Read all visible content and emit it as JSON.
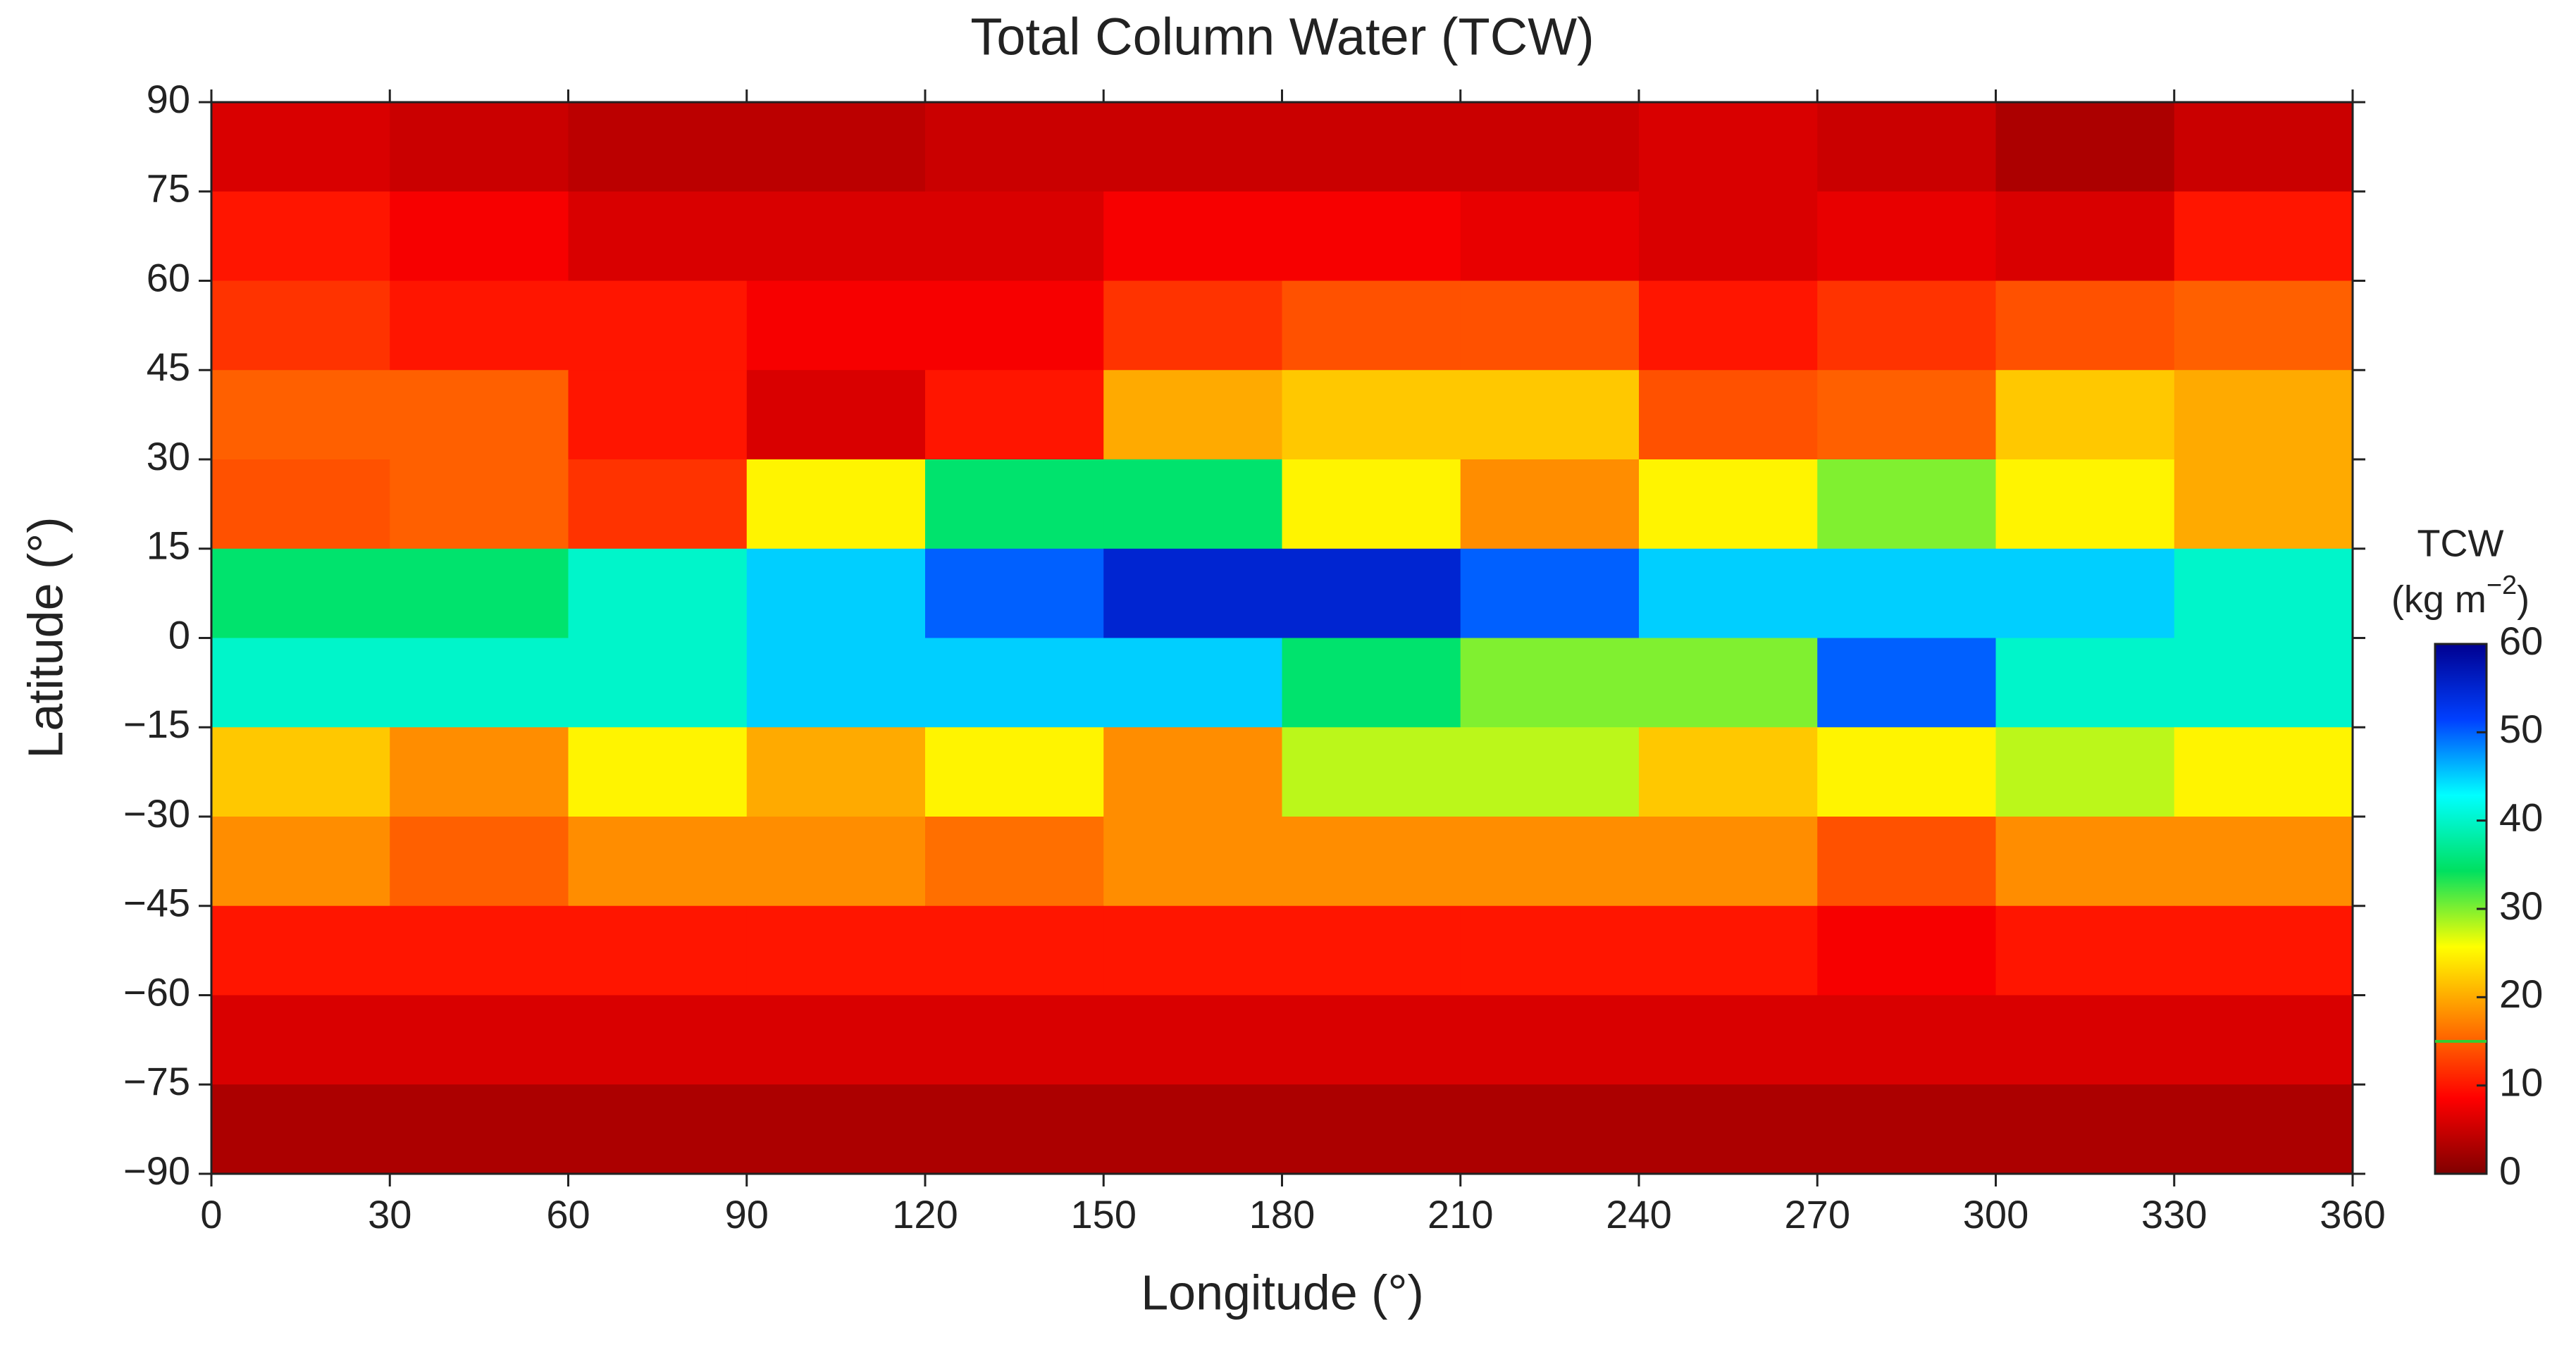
{
  "chart_data": {
    "type": "heatmap",
    "title": "Total Column Water (TCW)",
    "xlabel": "Longitude (°)",
    "ylabel": "Latitude (°)",
    "xlim": [
      0,
      360
    ],
    "ylim": [
      -90,
      90
    ],
    "xticks": [
      0,
      30,
      60,
      90,
      120,
      150,
      180,
      210,
      240,
      270,
      300,
      330,
      360
    ],
    "yticks": [
      {
        "value": -90,
        "label": "−90"
      },
      {
        "value": -75,
        "label": "−75"
      },
      {
        "value": -60,
        "label": "−60"
      },
      {
        "value": -45,
        "label": "−45"
      },
      {
        "value": -30,
        "label": "−30"
      },
      {
        "value": -15,
        "label": "−15"
      },
      0,
      15,
      30,
      45,
      60,
      75,
      90
    ],
    "x_bins": [
      0,
      30,
      60,
      90,
      120,
      150,
      180,
      210,
      240,
      270,
      300,
      330,
      360
    ],
    "y_bins": [
      90,
      75,
      60,
      45,
      30,
      15,
      0,
      -15,
      -30,
      -45,
      -60,
      -75,
      -90
    ],
    "values": [
      [
        6,
        5,
        4,
        4,
        5,
        5,
        5,
        5,
        6,
        5,
        3,
        5
      ],
      [
        10,
        8,
        6,
        6,
        6,
        8,
        8,
        7,
        6,
        7,
        6,
        10
      ],
      [
        12,
        10,
        10,
        8,
        8,
        12,
        14,
        14,
        10,
        12,
        14,
        15
      ],
      [
        15,
        15,
        10,
        6,
        10,
        20,
        22,
        22,
        14,
        15,
        22,
        20
      ],
      [
        14,
        15,
        12,
        25,
        35,
        35,
        25,
        18,
        25,
        30,
        25,
        20
      ],
      [
        35,
        35,
        40,
        45,
        50,
        55,
        55,
        50,
        45,
        45,
        45,
        40
      ],
      [
        40,
        40,
        40,
        45,
        45,
        45,
        35,
        30,
        30,
        50,
        40,
        40
      ],
      [
        22,
        18,
        25,
        20,
        25,
        18,
        28,
        28,
        22,
        25,
        28,
        25
      ],
      [
        18,
        15,
        18,
        18,
        16,
        18,
        18,
        18,
        18,
        14,
        18,
        18
      ],
      [
        10,
        10,
        10,
        10,
        10,
        10,
        10,
        10,
        10,
        8,
        10,
        10
      ],
      [
        6,
        6,
        6,
        6,
        6,
        6,
        6,
        6,
        6,
        6,
        6,
        6
      ],
      [
        3,
        3,
        3,
        3,
        3,
        3,
        3,
        3,
        3,
        3,
        3,
        3
      ]
    ],
    "colorbar_label": {
      "name": "TCW",
      "unit": "(kg m",
      "exponent": "−2",
      "close": ")"
    },
    "clim": [
      0,
      60
    ],
    "cticks": [
      0,
      10,
      20,
      30,
      40,
      50,
      60
    ],
    "colormap": [
      "#800000",
      "#ff0000",
      "#ff8000",
      "#ffff00",
      "#00e060",
      "#00ffff",
      "#0040ff",
      "#000090"
    ],
    "contour_level": 15,
    "contour_color": "#33cc33"
  }
}
